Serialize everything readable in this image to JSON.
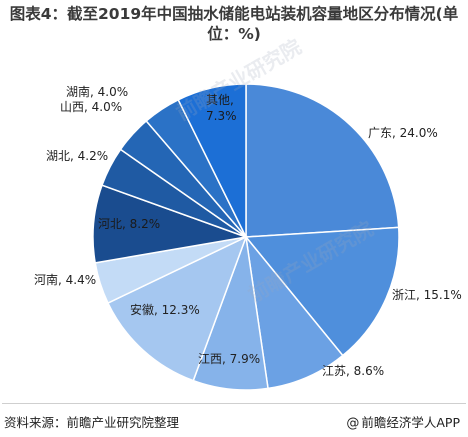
{
  "title": "图表4：截至2019年中国抽水储能电站装机容量地区分布情况(单位：%)",
  "chart_data": {
    "type": "pie",
    "title": "图表4：截至2019年中国抽水储能电站装机容量地区分布情况(单位：%)",
    "unit": "%",
    "slices": [
      {
        "label": "广东",
        "value": 24.0,
        "display": "广东, 24.0%",
        "color": "#4a89d8"
      },
      {
        "label": "浙江",
        "value": 15.1,
        "display": "浙江, 15.1%",
        "color": "#4f8fdc"
      },
      {
        "label": "江苏",
        "value": 8.6,
        "display": "江苏, 8.6%",
        "color": "#6ba1e4"
      },
      {
        "label": "江西",
        "value": 7.9,
        "display": "江西, 7.9%",
        "color": "#86b3ea"
      },
      {
        "label": "安徽",
        "value": 12.3,
        "display": "安徽, 12.3%",
        "color": "#a5c7f0"
      },
      {
        "label": "河南",
        "value": 4.4,
        "display": "河南, 4.4%",
        "color": "#c3dbf6"
      },
      {
        "label": "河北",
        "value": 8.2,
        "display": "河北, 8.2%",
        "color": "#1a4c8f"
      },
      {
        "label": "湖北",
        "value": 4.2,
        "display": "湖北, 4.2%",
        "color": "#1f5aa3"
      },
      {
        "label": "山西",
        "value": 4.0,
        "display": "山西, 4.0%",
        "color": "#2466b5"
      },
      {
        "label": "湖南",
        "value": 4.0,
        "display": "湖南, 4.0%",
        "color": "#2b72c6"
      },
      {
        "label": "其他",
        "value": 7.3,
        "display": "其他,\n7.3%",
        "color": "#1c6fd6"
      }
    ]
  },
  "footer": {
    "source": "资料来源：前瞻产业研究院整理",
    "brand": "前瞻经济学人APP",
    "brand_icon": "at-sign-icon"
  },
  "watermark": "前瞻产业研究院"
}
